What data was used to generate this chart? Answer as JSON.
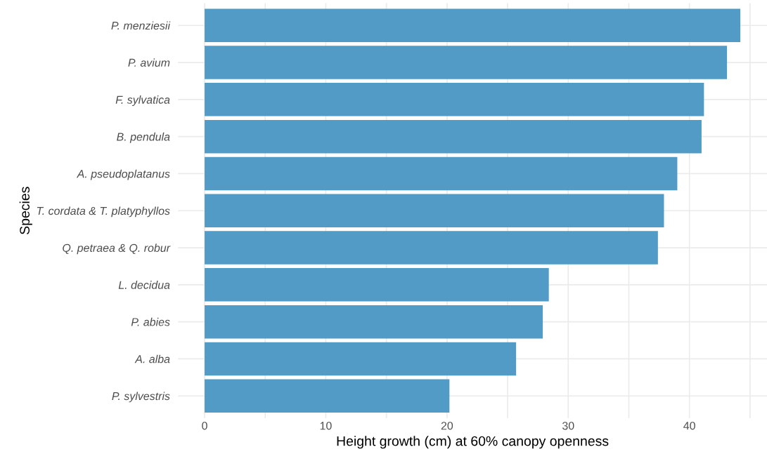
{
  "chart_data": {
    "type": "bar",
    "orientation": "horizontal",
    "xlabel": "Height growth (cm) at 60% canopy openness",
    "ylabel": "Species",
    "categories": [
      "P. menziesii",
      "P. avium",
      "F. sylvatica",
      "B. pendula",
      "A. pseudoplatanus",
      "T. cordata & T. platyphyllos",
      "Q. petraea & Q. robur",
      "L. decidua",
      "P. abies",
      "A. alba",
      "P. sylvestris"
    ],
    "values": [
      44.2,
      43.1,
      41.2,
      41.0,
      39.0,
      37.9,
      37.4,
      28.4,
      27.9,
      25.7,
      20.2
    ],
    "color": "#519bc6",
    "xlim": [
      -2.2,
      46.4
    ],
    "xticks": [
      0,
      {
        "value": 5,
        "label": null
      },
      10,
      {
        "value": 15,
        "label": null
      },
      20,
      {
        "value": 25,
        "label": null
      },
      30,
      {
        "value": 35,
        "label": null
      },
      40,
      {
        "value": 45,
        "label": null
      }
    ],
    "grid": true
  }
}
